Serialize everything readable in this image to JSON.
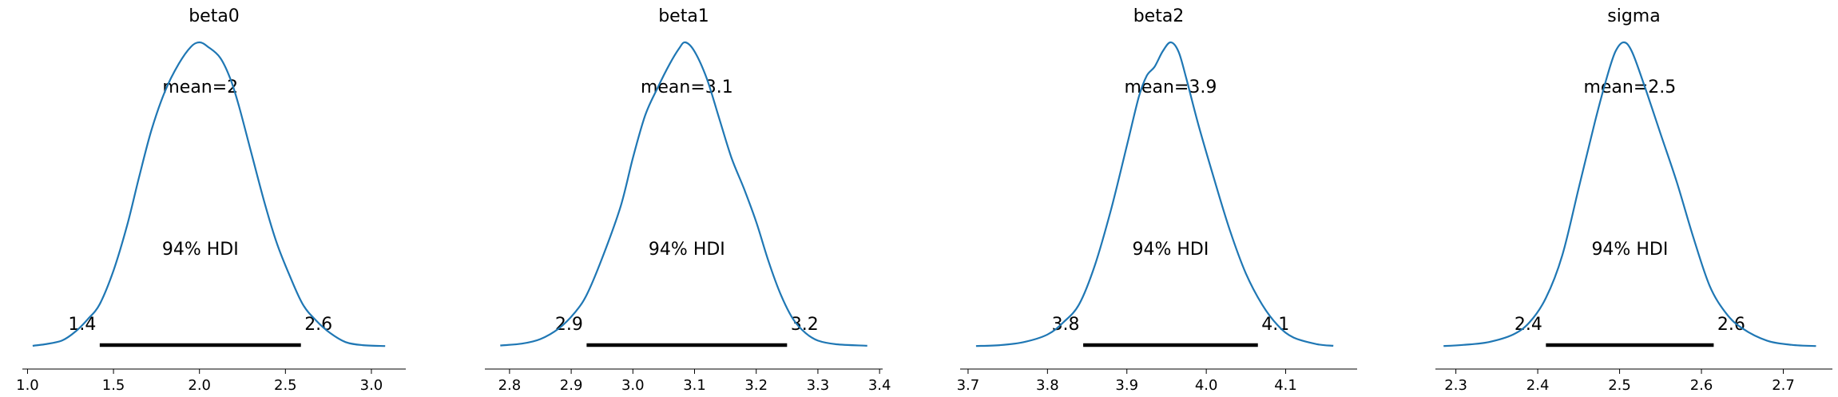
{
  "colors": {
    "density_line": "#1f77b4",
    "hdi_bar": "#000000",
    "axis": "#000000"
  },
  "chart_data": [
    {
      "type": "line",
      "title": "beta0",
      "mean_label": "mean=2",
      "hdi_label": "94% HDI",
      "hdi": [
        1.42,
        2.59
      ],
      "hdi_low_label": "1.4",
      "hdi_high_label": "2.6",
      "xlim": [
        0.97,
        3.2
      ],
      "xticks": [
        1.0,
        1.5,
        2.0,
        2.5,
        3.0
      ],
      "xtick_labels": [
        "1.0",
        "1.5",
        "2.0",
        "2.5",
        "3.0"
      ],
      "density_x": [
        1.03,
        1.1,
        1.2,
        1.28,
        1.35,
        1.42,
        1.5,
        1.58,
        1.65,
        1.72,
        1.8,
        1.88,
        1.95,
        2.0,
        2.05,
        2.12,
        2.18,
        2.23,
        2.3,
        2.38,
        2.45,
        2.52,
        2.6,
        2.68,
        2.76,
        2.85,
        2.95,
        3.08
      ],
      "density_y": [
        0.003,
        0.008,
        0.02,
        0.05,
        0.09,
        0.14,
        0.25,
        0.4,
        0.56,
        0.71,
        0.84,
        0.93,
        0.985,
        1.0,
        0.985,
        0.95,
        0.88,
        0.79,
        0.64,
        0.47,
        0.34,
        0.24,
        0.14,
        0.085,
        0.045,
        0.015,
        0.005,
        0.002
      ]
    },
    {
      "type": "line",
      "title": "beta1",
      "mean_label": "mean=3.1",
      "hdi_label": "94% HDI",
      "hdi": [
        2.925,
        3.25
      ],
      "hdi_low_label": "2.9",
      "hdi_high_label": "3.2",
      "xlim": [
        2.76,
        3.405
      ],
      "xticks": [
        2.8,
        2.9,
        3.0,
        3.1,
        3.2,
        3.3,
        3.4
      ],
      "xtick_labels": [
        "2.8",
        "2.9",
        "3.0",
        "3.1",
        "3.2",
        "3.3",
        "3.4"
      ],
      "density_x": [
        2.785,
        2.82,
        2.85,
        2.88,
        2.905,
        2.925,
        2.95,
        2.98,
        3.0,
        3.02,
        3.04,
        3.06,
        3.075,
        3.085,
        3.1,
        3.12,
        3.14,
        3.16,
        3.18,
        3.2,
        3.22,
        3.24,
        3.26,
        3.28,
        3.3,
        3.33,
        3.38
      ],
      "density_y": [
        0.004,
        0.01,
        0.025,
        0.06,
        0.11,
        0.17,
        0.29,
        0.46,
        0.62,
        0.76,
        0.85,
        0.93,
        0.98,
        1.0,
        0.97,
        0.88,
        0.75,
        0.62,
        0.52,
        0.41,
        0.28,
        0.17,
        0.09,
        0.045,
        0.02,
        0.008,
        0.003
      ]
    },
    {
      "type": "line",
      "title": "beta2",
      "mean_label": "mean=3.9",
      "hdi_label": "94% HDI",
      "hdi": [
        3.845,
        4.065
      ],
      "hdi_low_label": "3.8",
      "hdi_high_label": "4.1",
      "xlim": [
        3.69,
        4.19
      ],
      "xticks": [
        3.7,
        3.8,
        3.9,
        4.0,
        4.1
      ],
      "xtick_labels": [
        "3.7",
        "3.8",
        "3.9",
        "4.0",
        "4.1"
      ],
      "density_x": [
        3.71,
        3.74,
        3.77,
        3.8,
        3.82,
        3.84,
        3.86,
        3.88,
        3.9,
        3.915,
        3.925,
        3.935,
        3.945,
        3.955,
        3.965,
        3.975,
        3.99,
        4.01,
        4.03,
        4.05,
        4.07,
        4.09,
        4.11,
        4.14,
        4.16
      ],
      "density_y": [
        0.002,
        0.005,
        0.015,
        0.04,
        0.08,
        0.14,
        0.27,
        0.45,
        0.66,
        0.82,
        0.89,
        0.92,
        0.97,
        1.0,
        0.97,
        0.88,
        0.73,
        0.55,
        0.38,
        0.24,
        0.14,
        0.07,
        0.03,
        0.008,
        0.003
      ]
    },
    {
      "type": "line",
      "title": "sigma",
      "mean_label": "mean=2.5",
      "hdi_label": "94% HDI",
      "hdi": [
        2.41,
        2.615
      ],
      "hdi_low_label": "2.4",
      "hdi_high_label": "2.6",
      "xlim": [
        2.275,
        2.76
      ],
      "xticks": [
        2.3,
        2.4,
        2.5,
        2.6,
        2.7
      ],
      "xtick_labels": [
        "2.3",
        "2.4",
        "2.5",
        "2.6",
        "2.7"
      ],
      "density_x": [
        2.285,
        2.31,
        2.34,
        2.37,
        2.39,
        2.41,
        2.43,
        2.45,
        2.47,
        2.485,
        2.495,
        2.505,
        2.515,
        2.53,
        2.55,
        2.57,
        2.59,
        2.61,
        2.63,
        2.65,
        2.68,
        2.71,
        2.74
      ],
      "density_y": [
        0.002,
        0.006,
        0.015,
        0.04,
        0.08,
        0.16,
        0.3,
        0.52,
        0.74,
        0.89,
        0.97,
        1.0,
        0.97,
        0.86,
        0.7,
        0.54,
        0.36,
        0.2,
        0.11,
        0.06,
        0.02,
        0.006,
        0.002
      ]
    }
  ]
}
